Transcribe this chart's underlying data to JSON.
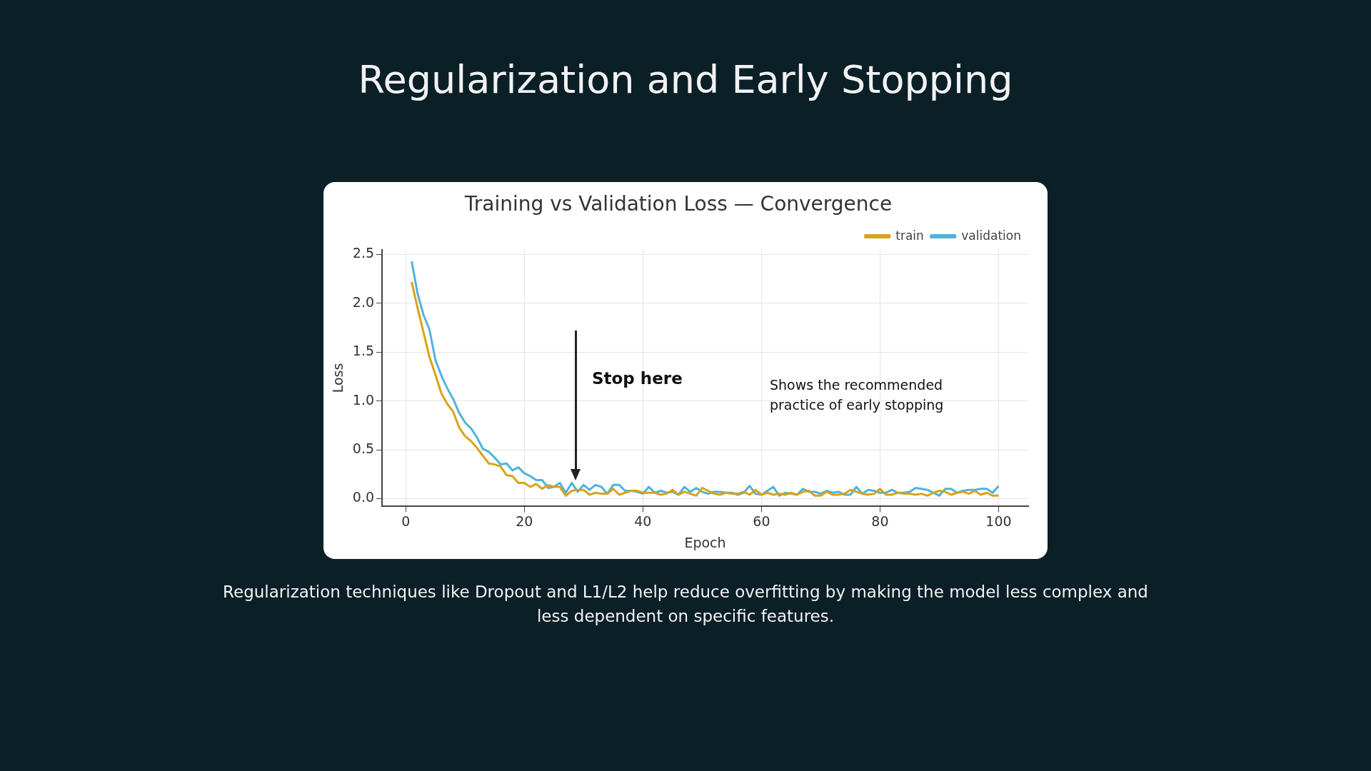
{
  "chart_data": {
    "type": "line",
    "title": "Regularization and Early Stopping",
    "subtitle": "Training vs Validation Loss — Convergence",
    "xlabel": "Epoch",
    "ylabel": "Loss",
    "x": [
      1,
      2,
      3,
      4,
      5,
      6,
      7,
      8,
      9,
      10,
      11,
      12,
      13,
      14,
      15,
      16,
      17,
      18,
      19,
      20,
      21,
      22,
      23,
      24,
      25,
      26,
      27,
      28,
      29,
      30,
      31,
      32,
      33,
      34,
      35,
      36,
      37,
      38,
      39,
      40,
      41,
      42,
      43,
      44,
      45,
      46,
      47,
      48,
      49,
      50,
      51,
      52,
      53,
      54,
      55,
      56,
      57,
      58,
      59,
      60,
      61,
      62,
      63,
      64,
      65,
      66,
      67,
      68,
      69,
      70,
      71,
      72,
      73,
      74,
      75,
      76,
      77,
      78,
      79,
      80,
      81,
      82,
      83,
      84,
      85,
      86,
      87,
      88,
      89,
      90,
      91,
      92,
      93,
      94,
      95,
      96,
      97,
      98,
      99,
      100
    ],
    "series": [
      {
        "name": "train",
        "color": "#d9a21b",
        "values": [
          2.22,
          1.95,
          1.7,
          1.45,
          1.27,
          1.08,
          0.97,
          0.89,
          0.73,
          0.64,
          0.59,
          0.52,
          0.44,
          0.36,
          0.35,
          0.33,
          0.24,
          0.23,
          0.16,
          0.16,
          0.12,
          0.15,
          0.1,
          0.14,
          0.12,
          0.12,
          0.03,
          0.08,
          0.09,
          0.09,
          0.04,
          0.06,
          0.05,
          0.05,
          0.1,
          0.04,
          0.06,
          0.08,
          0.08,
          0.06,
          0.06,
          0.06,
          0.04,
          0.05,
          0.09,
          0.04,
          0.07,
          0.05,
          0.03,
          0.11,
          0.08,
          0.05,
          0.04,
          0.06,
          0.05,
          0.05,
          0.07,
          0.04,
          0.09,
          0.04,
          0.06,
          0.04,
          0.05,
          0.04,
          0.06,
          0.04,
          0.07,
          0.08,
          0.03,
          0.03,
          0.07,
          0.04,
          0.04,
          0.05,
          0.09,
          0.07,
          0.05,
          0.04,
          0.05,
          0.1,
          0.04,
          0.04,
          0.06,
          0.05,
          0.05,
          0.04,
          0.05,
          0.03,
          0.06,
          0.08,
          0.07,
          0.04,
          0.06,
          0.07,
          0.05,
          0.08,
          0.04,
          0.06,
          0.03,
          0.03
        ]
      },
      {
        "name": "validation",
        "color": "#4fb3d9",
        "values": [
          2.43,
          2.1,
          1.88,
          1.73,
          1.42,
          1.26,
          1.13,
          1.02,
          0.88,
          0.78,
          0.72,
          0.63,
          0.51,
          0.48,
          0.42,
          0.35,
          0.36,
          0.29,
          0.32,
          0.26,
          0.23,
          0.19,
          0.19,
          0.11,
          0.12,
          0.16,
          0.06,
          0.16,
          0.07,
          0.14,
          0.09,
          0.14,
          0.12,
          0.05,
          0.14,
          0.14,
          0.08,
          0.08,
          0.07,
          0.05,
          0.12,
          0.06,
          0.08,
          0.06,
          0.07,
          0.04,
          0.12,
          0.07,
          0.11,
          0.07,
          0.05,
          0.07,
          0.07,
          0.06,
          0.06,
          0.04,
          0.06,
          0.13,
          0.05,
          0.04,
          0.08,
          0.12,
          0.03,
          0.06,
          0.05,
          0.04,
          0.1,
          0.07,
          0.07,
          0.05,
          0.08,
          0.06,
          0.07,
          0.04,
          0.04,
          0.12,
          0.05,
          0.09,
          0.08,
          0.06,
          0.06,
          0.09,
          0.06,
          0.06,
          0.07,
          0.11,
          0.1,
          0.09,
          0.06,
          0.03,
          0.1,
          0.1,
          0.06,
          0.08,
          0.09,
          0.09,
          0.1,
          0.1,
          0.06,
          0.13
        ]
      }
    ],
    "xlim": [
      -4,
      105
    ],
    "ylim": [
      -0.08,
      2.55
    ],
    "xticks": [
      0,
      20,
      40,
      60,
      80,
      100
    ],
    "yticks": [
      {
        "value": 0,
        "label": "0.0"
      },
      0.5,
      {
        "value": 1,
        "label": "1.0"
      },
      1.5,
      {
        "value": 2,
        "label": "2.0"
      },
      2.5
    ],
    "grid": true,
    "legend": "top right",
    "marker": "none",
    "line_style": "solid",
    "annotations": [
      "Stop here",
      "Shows the recommended practice of early stopping",
      "Regularization techniques like Dropout and L1/L2 help reduce overfitting by making the model less complex and less dependent on specific features."
    ]
  }
}
